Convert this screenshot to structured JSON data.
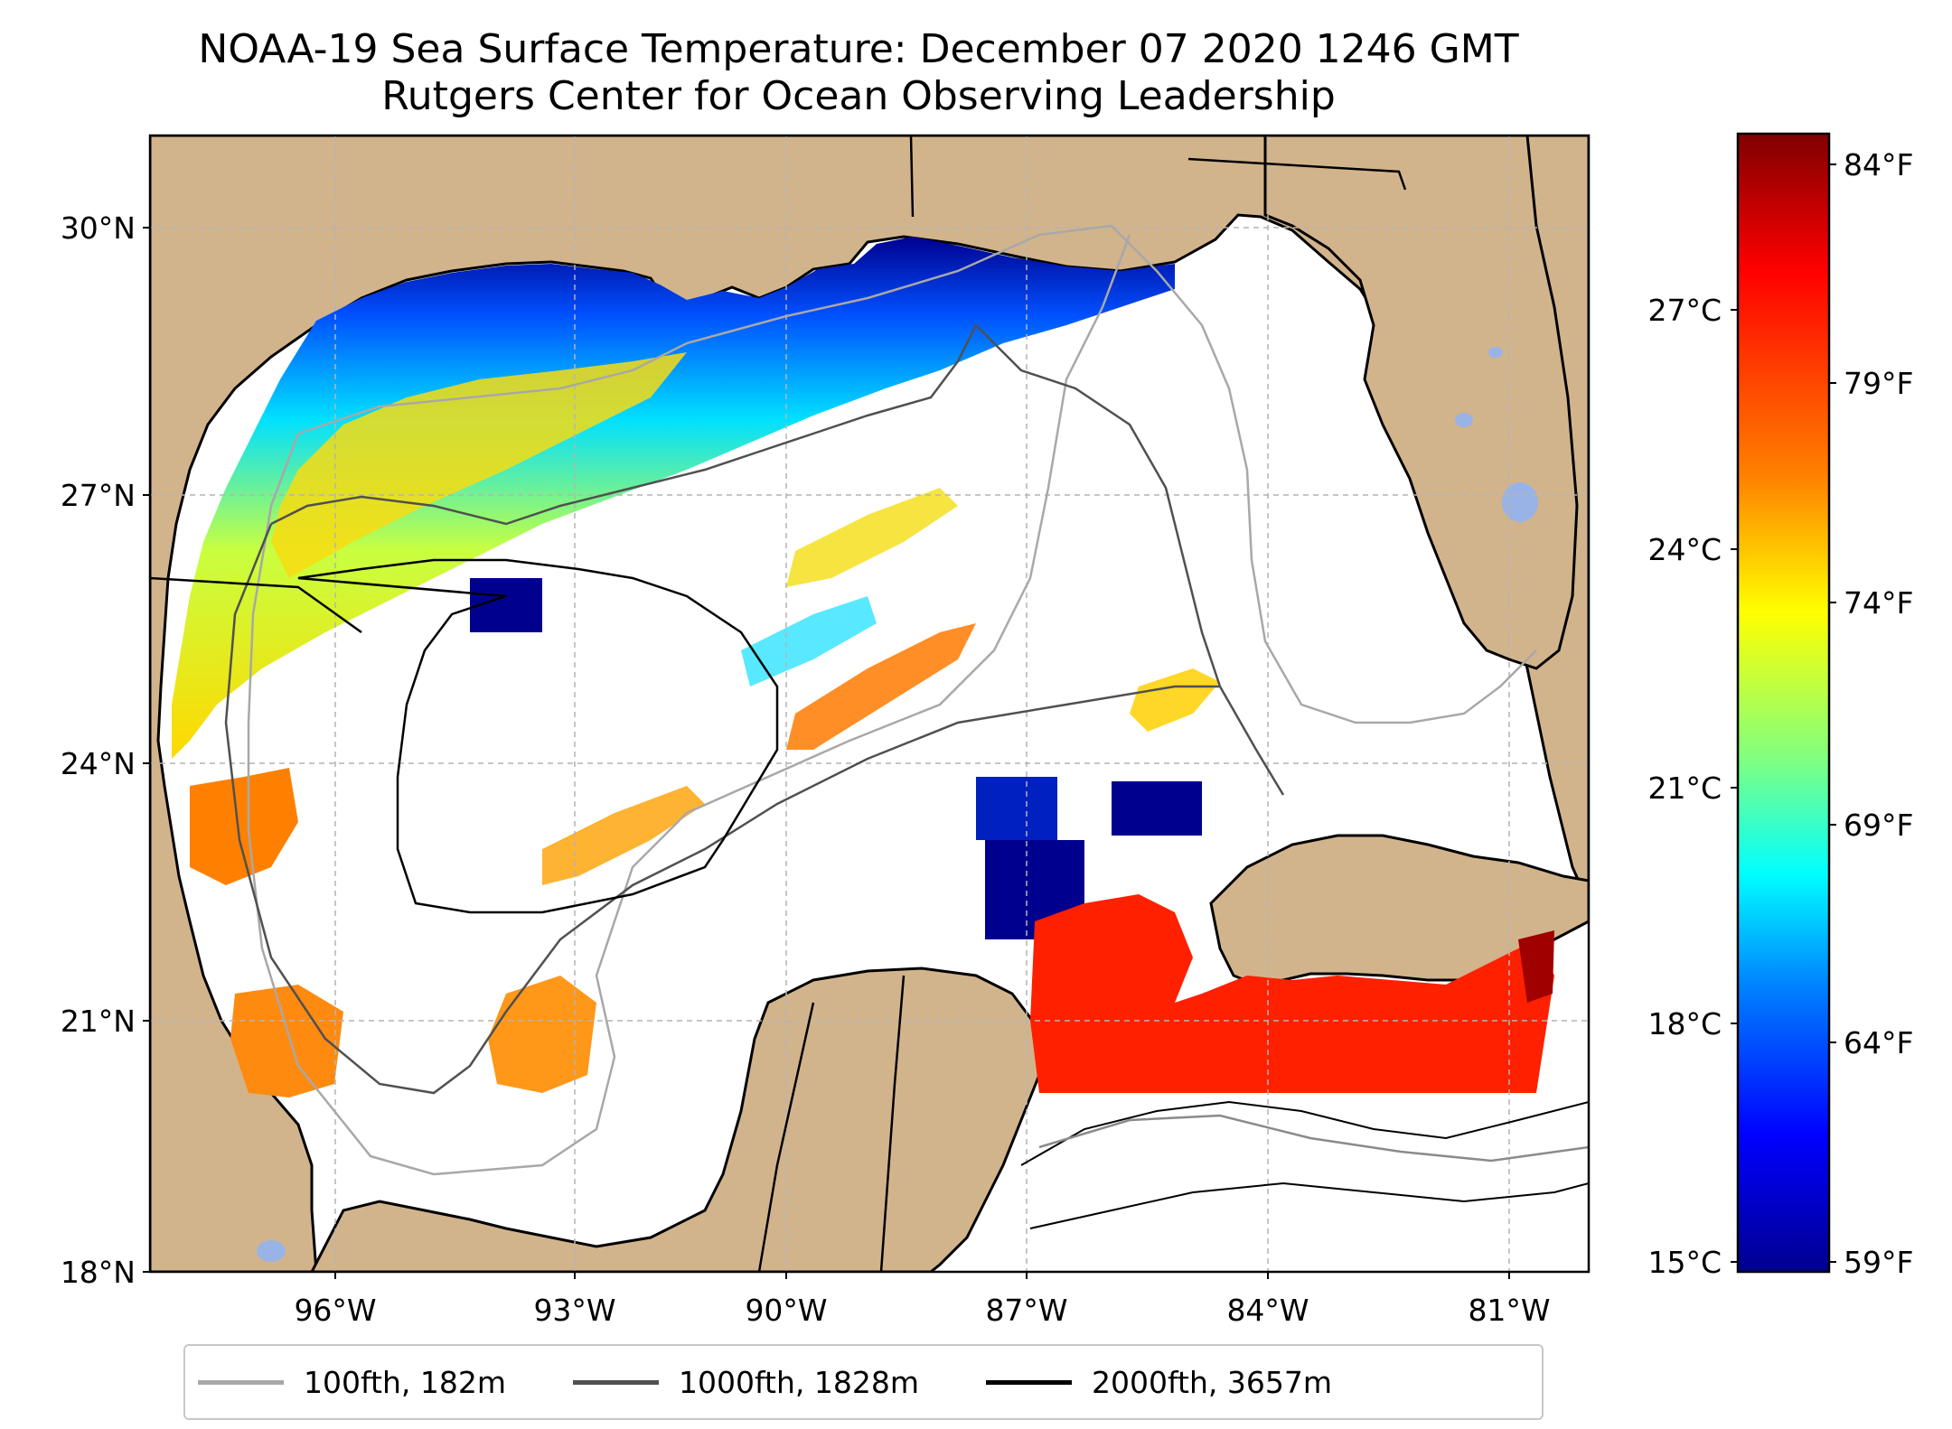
{
  "title": {
    "line1": "NOAA-19 Sea Surface Temperature: December 07 2020 1246 GMT",
    "line2": "Rutgers Center for Ocean Observing Leadership"
  },
  "map": {
    "lat_labels": [
      "30°N",
      "27°N",
      "24°N",
      "21°N",
      "18°N"
    ],
    "lon_labels": [
      "96°W",
      "93°W",
      "90°W",
      "87°W",
      "84°W",
      "81°W"
    ],
    "land_color": "#d2b48c",
    "lake_color": "#99b3e6",
    "border_color": "#000000"
  },
  "colorbar": {
    "celsius_labels": [
      "27°C",
      "24°C",
      "21°C",
      "18°C",
      "15°C"
    ],
    "fahrenheit_labels": [
      "84°F",
      "79°F",
      "74°F",
      "69°F",
      "64°F",
      "59°F"
    ],
    "colormap": [
      "#800000",
      "#ff0000",
      "#ff8000",
      "#ffff00",
      "#80ff80",
      "#00ffff",
      "#0080ff",
      "#0000ff",
      "#00008f"
    ],
    "range_celsius": [
      14.8,
      29
    ]
  },
  "legend": {
    "items": [
      {
        "label": "100fth, 182m",
        "color": "#a8a8a8"
      },
      {
        "label": "1000fth, 1828m",
        "color": "#505050"
      },
      {
        "label": "2000fth, 3657m",
        "color": "#000000"
      }
    ]
  }
}
